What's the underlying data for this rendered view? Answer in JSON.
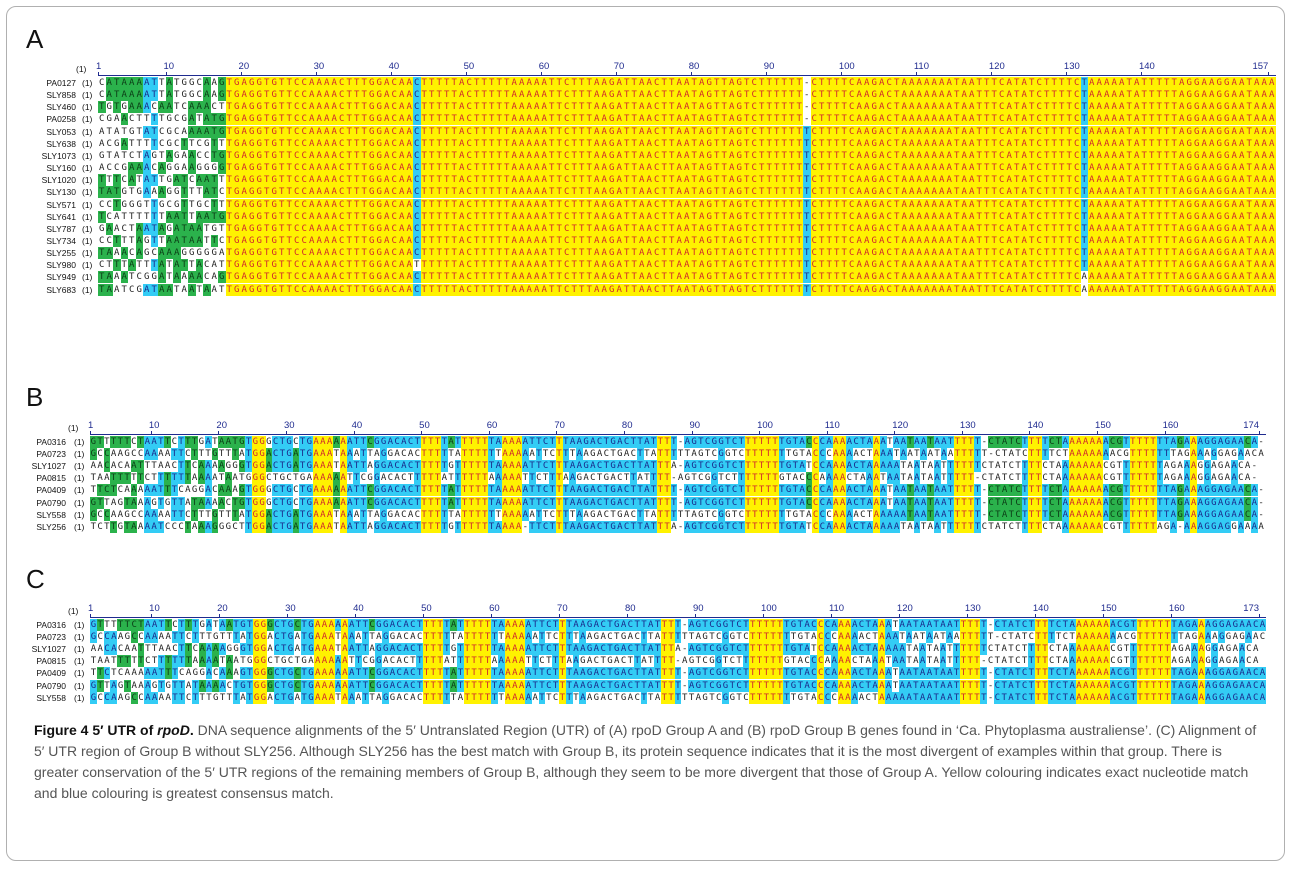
{
  "panels": [
    {
      "id": "A",
      "letter": "A",
      "start": "(1)",
      "length": 157,
      "ruler_labels": [
        1,
        10,
        20,
        30,
        40,
        50,
        60,
        70,
        80,
        90,
        100,
        110,
        120,
        130,
        140,
        157
      ],
      "colors": {
        "yellow": "#fff200",
        "blue": "#33ccf5",
        "green": "#2bb24c"
      },
      "rows": [
        {
          "name": "PA0127",
          "pos": "(1)",
          "seq": "CATAAAATTATGGCAAGTGAGGTGTTCCAAAACTTTGGACAACTTTTTACTTTTTAAAAATTCTTTAAGATTAACTTAATAGTTAGTCTTTTTT-CTTTTCAAGACTAAAAAAATAATTTCATATCTTTTCTAAAAATATTTTTAGGAAGGAATAAA"
        },
        {
          "name": "SLY858",
          "pos": "(1)",
          "seq": "CATAAAATTATGGCAAGTGAGGTGTTCCAAAACTTTGGACAACTTTTTACTTTTTAAAAATTCTTTAAGATTAACTTAATAGTTAGTCTTTTTT-CTTTTCAAGACTAAAAAAATAATTTCATATCTTTTCTAAAAATATTTTTAGGAAGGAATAAA"
        },
        {
          "name": "SLY460",
          "pos": "(1)",
          "seq": "TGTGAAACAATCAAACTTGAGGTGTTCCAAAACTTTGGACAACTTTTTACTTTTTAAAAATTCTTTAAGATTAACTTAATAGTTAGTCTTTTTT-CTTTTCAAGACTAAAAAAATAATTTCATATCTTTTCTAAAAATATTTTTAGGAAGGAATAAA"
        },
        {
          "name": "PA0258",
          "pos": "(1)",
          "seq": "CGAACTTTTGCGATATGTGAGGTGTTCCAAAACTTTGGACAACTTTTTACTTTTTAAAAATTCTTTAAGATTAACTTAATAGTTAGTCTTTTTT-CTTTTCAAGACTAAAAAAATAATTTCATATCTTTTCTAAAAATATTTTTAGGAAGGAATAAA"
        },
        {
          "name": "SLY053",
          "pos": "(1)",
          "seq": "ATATGTATCGCAAAATGTGAGGTGTTCCAAAACTTTGGACAACTTTTTACTTTTTAAAAATTCTTTAAGATTAACTTAATAGTTAGTCTTTTTTTCTTTTCAAGACTAAAAAAATAATTTCATATCTTTTCTAAAAATATTTTTAGGAAGGAATAAA"
        },
        {
          "name": "SLY638",
          "pos": "(1)",
          "seq": "ACGATTTTCGCTTCGTTTGAGGTGTTCCAAAACTTTGGACAACTTTTTACTTTTTAAAAATTCTTTAAGATTAACTTAATAGTTAGTCTTTTTTTCTTTTCAAGACTAAAAAAATAATTTCATATCTTTTCTAAAAATATTTTTAGGAAGGAATAAA"
        },
        {
          "name": "SLY1073",
          "pos": "(1)",
          "seq": "GTATCTAGTAGAACCTGTGAGGTGTTCCAAAACTTTGGACAACTTTTTACTTTTTAAAAATTCTTTAAGATTAACTTAATAGTTAGTCTTTTTTTCTTTTCAAGACTAAAAAAATAATTTCATATCTTTTCTAAAAATATTTTTAGGAAGGAATAAA"
        },
        {
          "name": "SLY160",
          "pos": "(1)",
          "seq": "ACCGAAACAGGAAGGGGTGAGGTGTTCCAAAACTTTGGACAACTTTTTACTTTTTAAAAATTCTTTAAGATTAACTTAATAGTTAGTCTTTTTTTCTTTTCAAGACTAAAAAAATAATTTCATATCTTTTCTAAAAATATTTTTAGGAAGGAATAAA"
        },
        {
          "name": "SLY1020",
          "pos": "(1)",
          "seq": "TTTCATATTGATCAATTTGAGGTGTTCCAAAACTTTGGACAACTTTTTACTTTTTAAAAATTCTTTAAGATTAACTTAATAGTTAGTCTTTTTTTCTTTTCAAGACTAAAAAAATAATTTCATATCTTTTCTAAAAATATTTTTAGGAAGGAATAAA"
        },
        {
          "name": "SLY130",
          "pos": "(1)",
          "seq": "TATGTGAAAGGTTTATCTGAGGTGTTCCAAAACTTTGGACAACTTTTTACTTTTTAAAAATTCTTTAAGATTAACTTAATAGTTAGTCTTTTTTTCTTTTCAAGACTAAAAAAATAATTTCATATCTTTTCTAAAAATATTTTTAGGAAGGAATAAA"
        },
        {
          "name": "SLY571",
          "pos": "(1)",
          "seq": "CCTGGGTTGCGTTGCTTTGAGGTGTTCCAAAACTTTGGACAACTTTTTACTTTTTAAAAATTCTTTAAGATTAACTTAATAGTTAGTCTTTTTTTCTTTTCAAGACTAAAAAAATAATTTCATATCTTTTCTAAAAATATTTTTAGGAAGGAATAAA"
        },
        {
          "name": "SLY641",
          "pos": "(1)",
          "seq": "TCATTTTTTAATTAATGTGAGGTGTTCCAAAACTTTGGACAACTTTTTACTTTTTAAAAATTCTTTAAGATTAACTTAATAGTTAGTCTTTTTTTCTTTTCAAGACTAAAAAAATAATTTCATATCTTTTCTAAAAATATTTTTAGGAAGGAATAAA"
        },
        {
          "name": "SLY787",
          "pos": "(1)",
          "seq": "GAACTAATAGATAATGTTGAGGTGTTCCAAAACTTTGGACAACTTTTTACTTTTTAAAAATTCTTTAAGATTAACTTAATAGTTAGTCTTTTTTTCTTTTCAAGACTAAAAAAATAATTTCATATCTTTTCTAAAAATATTTTTAGGAAGGAATAAA"
        },
        {
          "name": "SLY734",
          "pos": "(1)",
          "seq": "CCTTTAGTTAATAATTCTGAGGTGTTCCAAAACTTTGGACAACTTTTTACTTTTTAAAAATTCTTTAAGATTAACTTAATAGTTAGTCTTTTTTTCTTTTCAAGACTAAAAAAATAATTTCATATCTTTTCTAAAAATATTTTTAGGAAGGAATAAA"
        },
        {
          "name": "SLY255",
          "pos": "(1)",
          "seq": "TAAACAGCAAAGGGGGATGAGGTGTTCCAAAACTTTGGACAACTTTTTACTTTTTAAAAATTCTTTAAGATTAACTTAATAGTTAGTCTTTTTTTCTTTTCAAGACTAAAAAAATAATTTCATATCTTTTCTAAAAATATTTTTAGGAAGGAATAAA"
        },
        {
          "name": "SLY980",
          "pos": "(1)",
          "seq": "CTTTATTTATATTACATTGAGGTGTTCCAAAACTTTGGACAATTTTTTACTTTTTAAAAATTCTTTAAGATTAACTTAATAGTTAGTCTTTTTTTCTTTTCAAGACTAAAAAAATAATTTCATATCTTTTCTAAAAATATTTTTAGGAAGGAATAAA"
        },
        {
          "name": "SLY949",
          "pos": "(1)",
          "seq": "TAAATCGGATAAAACAGTGAGGTGTTCCAAAACTTTGGACAACTTTTTACTTTTTAAAAATTCTTTAAGATTAACTTAATAGTTAGTCTTTTTTTCTTTTCAAGACTAAAAAAATAATTTCATATCTTTTCAAAAAATATTTTTAGGAAGGAATAAA"
        },
        {
          "name": "SLY683",
          "pos": "(1)",
          "seq": "TAATCGATAATAATAATTGAGGTGTTCCAAAACTTTGGACAACTTTTTACTTTTTAAAAATTCTTTAAGATTAACTTAATAGTTAGTCTTTTTTTCTTTTCAAGACTAAAAAAATAATTTCATATCTTTTCAAAAAATATTTTTAGGAAGGAATAAA"
        }
      ]
    },
    {
      "id": "B",
      "letter": "B",
      "start": "(1)",
      "length": 174,
      "ruler_labels": [
        1,
        10,
        20,
        30,
        40,
        50,
        60,
        70,
        80,
        90,
        100,
        110,
        120,
        130,
        140,
        150,
        160,
        174
      ],
      "rows": [
        {
          "name": "PA0316",
          "pos": "(1)",
          "seq": "GTTTTTCTAATTCTTTGATAATGTGGGCTGCTGAAAAAATTCGGACACTTTTTATTTTTTAAAAATTCTTTAAGACTGACTTATTTT-AGTCGGTCTTTTTTTGTACCCAAAACTAAATAATAATAATTTTT-CTATCTTTTCTAAAAAAACGTTTTTTTAGAAAGGAGAACA-"
        },
        {
          "name": "PA0723",
          "pos": "(1)",
          "seq": "GCCAAGCCAAAATTCTTTGTTTATGGACTGATGAAATAAATTAGGACACTTTTTATTTTTTAAAAATTCTTTAAGACTGACTTATTTTTAGTCGGTCTTTTTTTGTACCCAAAACTAAATAATAATAATTTTT-CTATCTTTTCTAAAAAAACGTTTTTTTAGAAAGGAGAACA-"
        },
        {
          "name": "SLY1027",
          "pos": "(1)",
          "seq": "AACACAATTTAACTTCAAAAGGGTGGACTGATGAAATAATTAGGACACTTTTTGTTTTTTAAAAATTCTTTAAGACTGACTTATTTA-AGTCGGTCTTTTTTTGTATCCAAAACTAAAAATAATAATTTTTTCTATCTTTTCTAAAAAAACGTTTTTTTAGAAAGGAGAACA-"
        },
        {
          "name": "PA0815",
          "pos": "(1)",
          "seq": "TAATTTTTCTTTTTTAAAATAATGGGCTGCTGAAAAAATTCGGACACTTTTTATTTTTTAAAAATTCTTTAAGACTGACTTATTTT-AGTCGGTCTTTTTTTGTACCCAAAACTAAATAATAATAATTTTT-CTATCTTTTCTAAAAAAACGTTTTTTTAGAAAGGAGAACA-"
        },
        {
          "name": "PA0409",
          "pos": "(1)",
          "seq": "TTCTCAAAAATTTCAGGACAAAGTGGGCTGCTGAAAAAATTCGGACACTTTTTATTTTTTAAAAATTCTTTAAGACTGACTTATTTT-AGTCGGTCTTTTTTTGTACCCAAAACTAAATAATAATAATTTTT-CTATCTTTTCTAAAAAAACGTTTTTTTAGAAAGGAGAACA-"
        },
        {
          "name": "PA0790",
          "pos": "(1)",
          "seq": "GTTAGTAAAGTGTTATAAAACTGTGGGCTGCTGAAAAAATTCGGACACTTTTTATTTTTTAAAAATTCTTTAAGACTGACTTATTTT-AGTCGGTCTTTTTTTGTACCCAAAACTAAATAATAATAATTTTT-CTATCTTTTCTAAAAAAACGTTTTTTTAGAAAGGAGAACA-"
        },
        {
          "name": "SLY558",
          "pos": "(1)",
          "seq": "GCCAAGCCAAAATTCTTTGTTTATGGACTGATGAAATAAATTAGGACACTTTTTATTTTTTAAAAATTCTTTAAGACTGACTTATTTTTAGTCGGTCTTTTTTTGTACCCAAAACTAAAAATAATAATTTTT-CTATCTTTTCTAAAAAAACGTTTTTTTAGAAAGGAGAACA-"
        },
        {
          "name": "SLY256",
          "pos": "(1)",
          "seq": "TCTTGTAAAATCCCTAAAGGGCTTGGACTGATGAAATAATTAGGACACTTTTTGTTTTTTAAAA-TTCTTTAAGACTGACTTATTTA-AGTCGGTCTTTTTTTGTATCCAAAACTAAAAATAATAATTTTTTCTATCTTTTCTAAAAAAACGTTTTTTAGA-AAAGGAGGAAAA"
        }
      ]
    },
    {
      "id": "C",
      "letter": "C",
      "start": "(1)",
      "length": 173,
      "ruler_labels": [
        1,
        10,
        20,
        30,
        40,
        50,
        60,
        70,
        80,
        90,
        100,
        110,
        120,
        130,
        140,
        150,
        160,
        173
      ],
      "rows": [
        {
          "name": "PA0316",
          "pos": "(1)",
          "seq": "GTTTTTCTAATTCTTTGATAATGTGGGCTGCTGAAAAAATTCGGACACTTTTTATTTTTTAAAAATTCTTTAAGACTGACTTATTTT-AGTCGGTCTTTTTTTGTACCCAAAACTAAATAATAATAATTTTT-CTATCTTTTCTAAAAAAACGTTTTTTTAGAAAGGAGAACA"
        },
        {
          "name": "PA0723",
          "pos": "(1)",
          "seq": "GCCAAGCCAAAATTCTTTGTTTATGGACTGATGAAATAAATTAGGACACTTTTTATTTTTTAAAAATTCTTTAAGACTGACTTATTTTTAGTCGGTCTTTTTTTGTACCCAAAACTAAATAATAATAATTTTT-CTATCTTTTCTAAAAAAACGTTTTTTTAGAAAGGAGAACA"
        },
        {
          "name": "SLY1027",
          "pos": "(1)",
          "seq": "AACACAATTTAACTTCAAAAGGGTGGACTGATGAAATAATTAGGACACTTTTTGTTTTTTAAAAATTCTTTAAGACTGACTTATTTA-AGTCGGTCTTTTTTTGTATCCAAAACTAAAAATAATAATTTTTTCTATCTTTTCTAAAAAAACGTTTTTTTAGAAAGGAGAACA"
        },
        {
          "name": "PA0815",
          "pos": "(1)",
          "seq": "TAATTTTTCTTTTTTAAAATAATGGGCTGCTGAAAAAATTCGGACACTTTTTATTTTTTAAAAATTCTTTAAGACTGACTTATTTT-AGTCGGTCTTTTTTTGTACCCAAAACTAAATAATAATAATTTTT-CTATCTTTTCTAAAAAAACGTTTTTTTAGAAAGGAGAACA"
        },
        {
          "name": "PA0409",
          "pos": "(1)",
          "seq": "TTCTCAAAAATTTCAGGACAAAGTGGGCTGCTGAAAAAATTCGGACACTTTTTATTTTTTAAAAATTCTTTAAGACTGACTTATTTT-AGTCGGTCTTTTTTTGTACCCAAAACTAAATAATAATAATTTTT-CTATCTTTTCTAAAAAAACGTTTTTTTAGAAAGGAGAACA"
        },
        {
          "name": "PA0790",
          "pos": "(1)",
          "seq": "GTTAGTAAAGTGTTATAAAACTGTGGGCTGCTGAAAAAATTCGGACACTTTTTATTTTTTAAAAATTCTTTAAGACTGACTTATTTT-AGTCGGTCTTTTTTTGTACCCAAAACTAAATAATAATAATTTTT-CTATCTTTTCTAAAAAAACGTTTTTTTAGAAAGGAGAACA"
        },
        {
          "name": "SLY558",
          "pos": "(1)",
          "seq": "GCCAAGCCAAAATTCTTTGTTTATGGACTGATGAAATAAATTAGGACACTTTTTATTTTTTAAAAATTCTTTAAGACTGACTTATTTTTAGTCGGTCTTTTTTTGTACCCAAAACTAAAAATAATAATTTTT-CTATCTTTTCTAAAAAAACGTTTTTTTAGAAAGGAGAACA"
        }
      ]
    }
  ],
  "caption": {
    "figure_label": "Figure 4",
    "title_a": "5′ UTR of ",
    "title_gene": "rpoD",
    "title_end": ".",
    "text": "DNA sequence alignments of the 5′ Untranslated Region (UTR) of (A) rpoD Group A and (B) rpoD Group B genes found in ‘Ca. Phytoplasma australiense’. (C) Alignment of 5′ UTR region of Group B without SLY256. Although SLY256 has the best match with Group B, its protein sequence indicates that it is the most divergent of examples within that group. There is greater conservation of the 5′ UTR regions of the remaining members of Group B, although they seem to be more divergent that those of Group A. Yellow colouring indicates exact nucleotide match and blue colouring is greatest consensus match."
  }
}
